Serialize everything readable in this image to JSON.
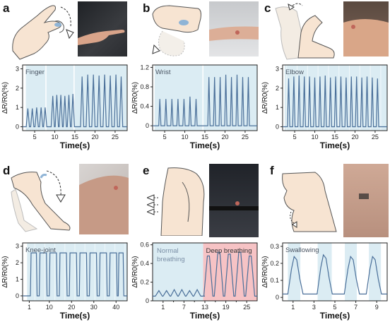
{
  "panels": [
    {
      "letter": "a",
      "tag": "Finger"
    },
    {
      "letter": "b",
      "tag": "Wrist"
    },
    {
      "letter": "c",
      "tag": "Elbow"
    },
    {
      "letter": "d",
      "tag": "Knee-joint"
    },
    {
      "letter": "e",
      "tag": "Normal breathing",
      "tag2": "Deep breathing"
    },
    {
      "letter": "f",
      "tag": "Swallowing"
    }
  ],
  "chart_data": [
    {
      "type": "line",
      "id": "a",
      "tag": "Finger",
      "xlabel": "Time(s)",
      "ylabel": "ΔR/R0(%)",
      "xlim": [
        2,
        28
      ],
      "ylim": [
        -0.2,
        3.2
      ],
      "xticks": [
        5,
        10,
        15,
        20,
        25
      ],
      "yticks": [
        0,
        1,
        2,
        3
      ],
      "shade_bands": [
        [
          2.8,
          7.8
        ],
        [
          7.8,
          14.8
        ],
        [
          14.8,
          28
        ]
      ],
      "peaks": [
        {
          "t": 3.3,
          "h": 0.95
        },
        {
          "t": 4.4,
          "h": 0.95
        },
        {
          "t": 5.5,
          "h": 1.0
        },
        {
          "t": 6.6,
          "h": 1.0
        },
        {
          "t": 7.6,
          "h": 1.0
        },
        {
          "t": 9.5,
          "h": 1.6
        },
        {
          "t": 10.5,
          "h": 1.65
        },
        {
          "t": 11.5,
          "h": 1.65
        },
        {
          "t": 12.5,
          "h": 1.6
        },
        {
          "t": 13.5,
          "h": 1.65
        },
        {
          "t": 14.5,
          "h": 1.7
        },
        {
          "t": 16.8,
          "h": 2.6
        },
        {
          "t": 18.2,
          "h": 2.7
        },
        {
          "t": 19.6,
          "h": 2.7
        },
        {
          "t": 21.0,
          "h": 2.65
        },
        {
          "t": 22.4,
          "h": 2.7
        },
        {
          "t": 23.8,
          "h": 2.65
        },
        {
          "t": 25.2,
          "h": 2.7
        },
        {
          "t": 26.5,
          "h": 2.6
        }
      ],
      "peak_width": 0.8,
      "baseline": 0.0
    },
    {
      "type": "line",
      "id": "b",
      "tag": "Wrist",
      "xlabel": "Time(s)",
      "ylabel": "ΔR/R0(%)",
      "xlim": [
        2,
        28
      ],
      "ylim": [
        -0.1,
        1.25
      ],
      "xticks": [
        5,
        10,
        15,
        20,
        25
      ],
      "yticks": [
        0,
        0.4,
        0.8,
        1.2
      ],
      "shade_bands": [
        [
          2.5,
          14.5
        ],
        [
          14.5,
          28
        ]
      ],
      "peaks": [
        {
          "t": 3.8,
          "h": 0.55
        },
        {
          "t": 5.3,
          "h": 0.55
        },
        {
          "t": 6.8,
          "h": 0.55
        },
        {
          "t": 8.3,
          "h": 0.55
        },
        {
          "t": 9.8,
          "h": 0.55
        },
        {
          "t": 11.3,
          "h": 0.6
        },
        {
          "t": 12.8,
          "h": 0.55
        },
        {
          "t": 16.0,
          "h": 1.0
        },
        {
          "t": 17.4,
          "h": 1.0
        },
        {
          "t": 18.8,
          "h": 1.0
        },
        {
          "t": 20.2,
          "h": 1.05
        },
        {
          "t": 21.6,
          "h": 1.0
        },
        {
          "t": 23.0,
          "h": 1.05
        },
        {
          "t": 24.4,
          "h": 1.0
        },
        {
          "t": 25.8,
          "h": 1.0
        }
      ],
      "peak_width": 0.55,
      "baseline": 0.0
    },
    {
      "type": "line",
      "id": "c",
      "tag": "Elbow",
      "xlabel": "Time(s)",
      "ylabel": "ΔR/R0(%)",
      "xlim": [
        2,
        28
      ],
      "ylim": [
        -0.2,
        3.2
      ],
      "xticks": [
        5,
        10,
        15,
        20,
        25
      ],
      "yticks": [
        0,
        1,
        2,
        3
      ],
      "shade_bands": [
        [
          2.5,
          28
        ]
      ],
      "peaks": [
        {
          "t": 3.5,
          "h": 2.5
        },
        {
          "t": 4.8,
          "h": 2.6
        },
        {
          "t": 6.1,
          "h": 2.65
        },
        {
          "t": 7.4,
          "h": 2.6
        },
        {
          "t": 8.7,
          "h": 2.6
        },
        {
          "t": 10.0,
          "h": 2.55
        },
        {
          "t": 11.3,
          "h": 2.6
        },
        {
          "t": 12.6,
          "h": 2.65
        },
        {
          "t": 13.9,
          "h": 2.55
        },
        {
          "t": 15.2,
          "h": 2.6
        },
        {
          "t": 16.5,
          "h": 2.6
        },
        {
          "t": 17.8,
          "h": 2.55
        },
        {
          "t": 19.1,
          "h": 2.6
        },
        {
          "t": 20.4,
          "h": 2.6
        },
        {
          "t": 21.7,
          "h": 2.55
        },
        {
          "t": 23.0,
          "h": 2.6
        },
        {
          "t": 24.3,
          "h": 2.55
        },
        {
          "t": 25.6,
          "h": 2.5
        }
      ],
      "peak_width": 0.6,
      "baseline": 0.0
    },
    {
      "type": "line",
      "id": "d",
      "tag": "Knee-joint",
      "xlabel": "Time(s)",
      "ylabel": "ΔR/R0(%)",
      "xlim": [
        -2,
        45
      ],
      "ylim": [
        -0.3,
        3.2
      ],
      "xticks": [
        1,
        10,
        20,
        30,
        40
      ],
      "yticks": [
        0,
        1,
        2,
        3
      ],
      "shade_bands": [
        [
          0,
          45
        ]
      ],
      "plateaus": [
        [
          1.5,
          4.5
        ],
        [
          5.5,
          9.0
        ],
        [
          10.0,
          13.5
        ],
        [
          14.5,
          18.0
        ],
        [
          19.0,
          22.5
        ],
        [
          23.5,
          27.0
        ],
        [
          28.0,
          31.5
        ],
        [
          32.5,
          36.0
        ],
        [
          37.0,
          40.5
        ],
        [
          41.0,
          43.5
        ]
      ],
      "plateau_height": 2.6,
      "baseline": 0.0
    },
    {
      "type": "line",
      "id": "e",
      "tag": "Normal breathing",
      "tag2": "Deep breathing",
      "xlabel": "Time(s)",
      "ylabel": "ΔR/R0(%)",
      "xlim": [
        -2,
        28
      ],
      "ylim": [
        0,
        0.62
      ],
      "xticks": [
        1,
        7,
        13,
        19,
        25
      ],
      "xticklabels": [
        "1",
        "7",
        "13",
        "19",
        "25"
      ],
      "extra_xticks": [
        4,
        10,
        16,
        22
      ],
      "yticks": [
        0,
        0.2,
        0.4,
        0.6
      ],
      "shade_bands": [
        [
          -2,
          12.5
        ]
      ],
      "pink_band": [
        12.5,
        28
      ],
      "normal_peaks": [
        {
          "t": -0.2,
          "h": 0.11
        },
        {
          "t": 2.0,
          "h": 0.11
        },
        {
          "t": 4.2,
          "h": 0.12
        },
        {
          "t": 6.4,
          "h": 0.12
        },
        {
          "t": 8.6,
          "h": 0.11
        },
        {
          "t": 10.8,
          "h": 0.12
        }
      ],
      "deep_peaks": [
        {
          "t": 14.0,
          "h": 0.48
        },
        {
          "t": 17.0,
          "h": 0.52
        },
        {
          "t": 20.0,
          "h": 0.5
        },
        {
          "t": 23.0,
          "h": 0.52
        },
        {
          "t": 26.0,
          "h": 0.48
        }
      ],
      "baseline": 0.05
    },
    {
      "type": "line",
      "id": "f",
      "tag": "Swallowing",
      "xlabel": "Time(s)",
      "ylabel": "ΔR/R0(%)",
      "xlim": [
        0,
        10
      ],
      "ylim": [
        -0.02,
        0.32
      ],
      "xticks": [
        1,
        3,
        5,
        7,
        9
      ],
      "xticklabels": [
        "1",
        "3",
        "5",
        "7",
        "9"
      ],
      "yticks": [
        0,
        0.1,
        0.2,
        0.3
      ],
      "shade_bands": [
        [
          0.5,
          1.7
        ],
        [
          3.3,
          4.7
        ],
        [
          5.9,
          7.1
        ],
        [
          8.2,
          9.4
        ]
      ],
      "bumps": [
        {
          "t": 1.2,
          "h": 0.24
        },
        {
          "t": 4.0,
          "h": 0.25
        },
        {
          "t": 6.6,
          "h": 0.24
        },
        {
          "t": 8.7,
          "h": 0.24
        }
      ],
      "baseline": 0.02
    }
  ]
}
